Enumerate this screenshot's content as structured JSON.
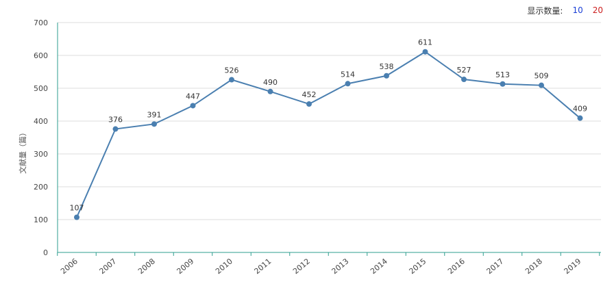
{
  "display_count": {
    "label": "显示数量:",
    "options": [
      {
        "label": "10",
        "color": "#1a3fd6"
      },
      {
        "label": "20",
        "color": "#cc1f1f"
      }
    ]
  },
  "chart_data": {
    "type": "line",
    "title": "",
    "xlabel": "",
    "ylabel": "文献量（篇）",
    "categories": [
      "2006",
      "2007",
      "2008",
      "2009",
      "2010",
      "2011",
      "2012",
      "2013",
      "2014",
      "2015",
      "2016",
      "2017",
      "2018",
      "2019"
    ],
    "values": [
      107,
      376,
      391,
      447,
      526,
      490,
      452,
      514,
      538,
      611,
      527,
      513,
      509,
      409
    ],
    "ylim": [
      0,
      700
    ],
    "yticks": [
      0,
      100,
      200,
      300,
      400,
      500,
      600,
      700
    ],
    "grid": true,
    "line_color": "#4a7fb0",
    "axis_color": "#2e9e8f"
  }
}
